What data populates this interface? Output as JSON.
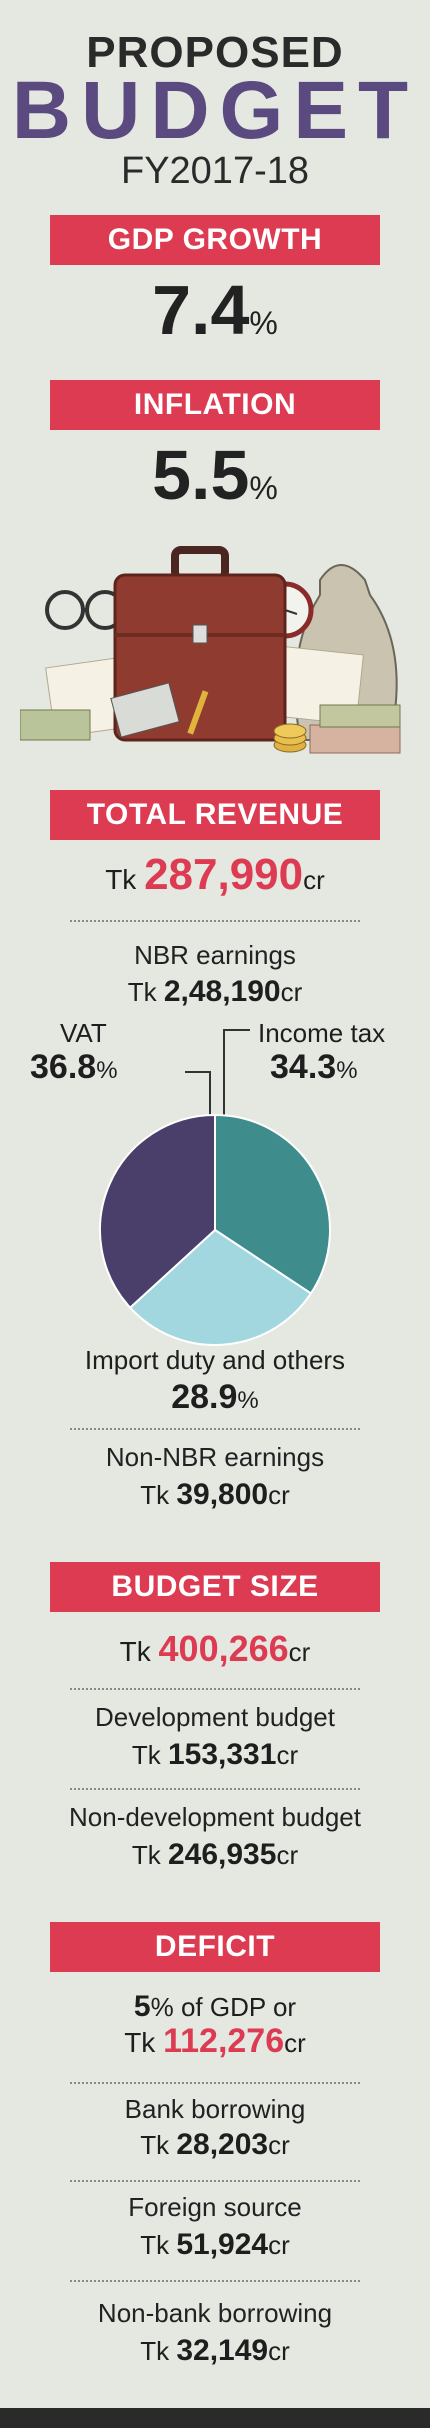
{
  "header": {
    "line1": "PROPOSED",
    "line2": "BUDGET",
    "line3": "FY2017-18"
  },
  "gdp": {
    "label": "GDP GROWTH",
    "value": "7.4",
    "unit": "%"
  },
  "inflation": {
    "label": "INFLATION",
    "value": "5.5",
    "unit": "%"
  },
  "revenue": {
    "label": "TOTAL REVENUE",
    "prefix": "Tk ",
    "value": "287,990",
    "unit": "cr",
    "nbr_label": "NBR earnings",
    "nbr_prefix": "Tk ",
    "nbr_value": "2,48,190",
    "nbr_unit": "cr",
    "non_nbr_label": "Non-NBR earnings",
    "non_nbr_prefix": "Tk ",
    "non_nbr_value": "39,800",
    "non_nbr_unit": "cr"
  },
  "chart_data": {
    "type": "pie",
    "slices": [
      {
        "label": "Income tax",
        "value": 34.3,
        "color": "#3f8c8c"
      },
      {
        "label": "Import duty and others",
        "value": 28.9,
        "color": "#a3d7e0"
      },
      {
        "label": "VAT",
        "value": 36.8,
        "color": "#4a3f6b"
      }
    ],
    "unit": "%"
  },
  "budget": {
    "label": "BUDGET SIZE",
    "prefix": "Tk ",
    "value": "400,266",
    "unit": "cr",
    "dev_label": "Development budget",
    "dev_prefix": "Tk ",
    "dev_value": "153,331",
    "dev_unit": "cr",
    "nondev_label": "Non-development budget",
    "nondev_prefix": "Tk ",
    "nondev_value": "246,935",
    "nondev_unit": "cr"
  },
  "deficit": {
    "label": "DEFICIT",
    "gdp_pct": "5",
    "gdp_text": "% of GDP or",
    "prefix": "Tk ",
    "value": "112,276",
    "unit": "cr",
    "bank_label": "Bank borrowing",
    "bank_prefix": "Tk ",
    "bank_value": "28,203",
    "bank_unit": "cr",
    "foreign_label": "Foreign source",
    "foreign_prefix": "Tk ",
    "foreign_value": "51,924",
    "foreign_unit": "cr",
    "nonbank_label": "Non-bank borrowing",
    "nonbank_prefix": "Tk ",
    "nonbank_value": "32,149",
    "nonbank_unit": "cr"
  },
  "colors": {
    "accent": "#dd3b52",
    "title_purple": "#5a4a80",
    "background": "#e4e8e1"
  }
}
